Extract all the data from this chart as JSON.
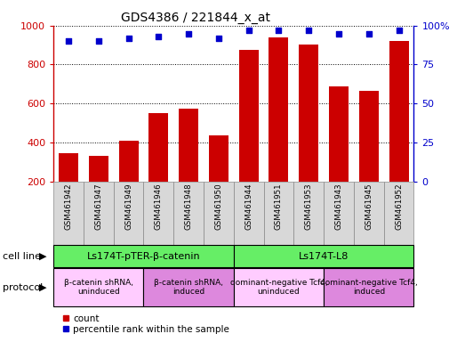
{
  "title": "GDS4386 / 221844_x_at",
  "samples": [
    "GSM461942",
    "GSM461947",
    "GSM461949",
    "GSM461946",
    "GSM461948",
    "GSM461950",
    "GSM461944",
    "GSM461951",
    "GSM461953",
    "GSM461943",
    "GSM461945",
    "GSM461952"
  ],
  "counts": [
    345,
    330,
    410,
    550,
    575,
    435,
    875,
    940,
    905,
    690,
    665,
    920
  ],
  "percentile_ranks": [
    90,
    90,
    92,
    93,
    95,
    92,
    97,
    97,
    97,
    95,
    95,
    97
  ],
  "ylim_left": [
    200,
    1000
  ],
  "ylim_right": [
    0,
    100
  ],
  "yticks_left": [
    200,
    400,
    600,
    800,
    1000
  ],
  "yticks_right": [
    0,
    25,
    50,
    75,
    100
  ],
  "bar_color": "#cc0000",
  "dot_color": "#0000cc",
  "sample_box_color": "#d8d8d8",
  "cell_line_groups": [
    {
      "label": "Ls174T-pTER-β-catenin",
      "start": 0,
      "end": 6,
      "color": "#66ee66"
    },
    {
      "label": "Ls174T-L8",
      "start": 6,
      "end": 12,
      "color": "#66ee66"
    }
  ],
  "protocol_groups": [
    {
      "label": "β-catenin shRNA,\nuninduced",
      "start": 0,
      "end": 3,
      "color": "#ffccff"
    },
    {
      "label": "β-catenin shRNA,\ninduced",
      "start": 3,
      "end": 6,
      "color": "#dd88dd"
    },
    {
      "label": "dominant-negative Tcf4,\nuninduced",
      "start": 6,
      "end": 9,
      "color": "#ffccff"
    },
    {
      "label": "dominant-negative Tcf4,\ninduced",
      "start": 9,
      "end": 12,
      "color": "#dd88dd"
    }
  ],
  "cell_line_row_label": "cell line",
  "protocol_row_label": "protocol",
  "legend_count_label": "count",
  "legend_percentile_label": "percentile rank within the sample"
}
